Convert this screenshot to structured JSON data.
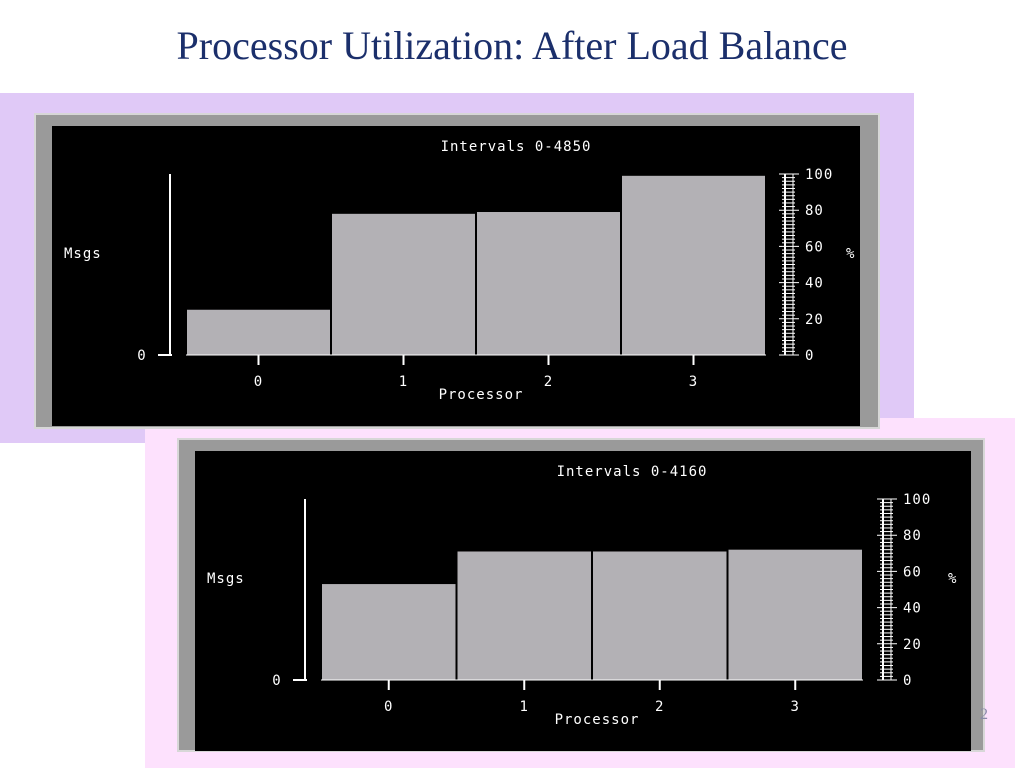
{
  "slide": {
    "title": "Processor Utilization: After Load Balance",
    "page_number": "2"
  },
  "colors": {
    "title": "#1b2f6b",
    "panel_top_bg": "#e0c9f7",
    "panel_bottom_bg": "#fde1fd",
    "screen_bg": "#000000",
    "bar_fill": "#b3b1b5",
    "axis": "#ffffff"
  },
  "chart_data": [
    {
      "type": "bar",
      "title": "Intervals 0-4850",
      "categories": [
        "0",
        "1",
        "2",
        "3"
      ],
      "values": [
        25,
        78,
        79,
        99
      ],
      "xlabel": "Processor",
      "ylabel": "Msgs",
      "y_left_ticks": [
        "0"
      ],
      "y2label": "%",
      "y2_ticks": [
        "0",
        "20",
        "40",
        "60",
        "80",
        "100"
      ],
      "ylim": [
        0,
        100
      ],
      "grid": false
    },
    {
      "type": "bar",
      "title": "Intervals 0-4160",
      "categories": [
        "0",
        "1",
        "2",
        "3"
      ],
      "values": [
        53,
        71,
        71,
        72
      ],
      "xlabel": "Processor",
      "ylabel": "Msgs",
      "y_left_ticks": [
        "0"
      ],
      "y2label": "%",
      "y2_ticks": [
        "0",
        "20",
        "40",
        "60",
        "80",
        "100"
      ],
      "ylim": [
        0,
        100
      ],
      "grid": false
    }
  ]
}
